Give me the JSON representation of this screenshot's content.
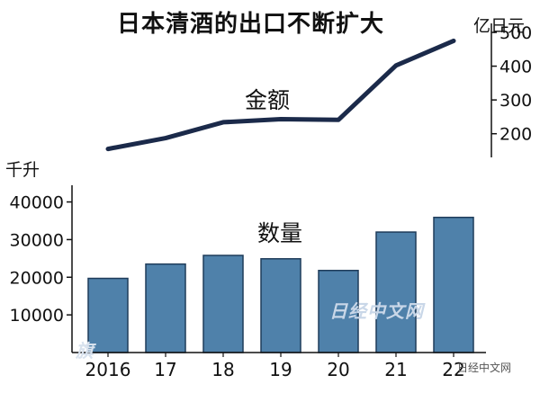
{
  "chart_data": [
    {
      "type": "line",
      "title": "日本清酒的出口不断扩大",
      "unit_label": "亿日元",
      "series_label": "金额",
      "x": [
        "2016",
        "17",
        "18",
        "19",
        "20",
        "21",
        "22"
      ],
      "values": [
        155,
        187,
        234,
        243,
        241,
        402,
        475
      ],
      "ylim": [
        130,
        500
      ],
      "yticks": [
        200,
        300,
        400,
        500
      ],
      "axis_side": "right",
      "color": "#1b2a4a"
    },
    {
      "type": "bar",
      "unit_label": "千升",
      "series_label": "数量",
      "categories": [
        "2016",
        "17",
        "18",
        "19",
        "20",
        "21",
        "22"
      ],
      "values": [
        19700,
        23500,
        25800,
        24900,
        21800,
        32000,
        35900
      ],
      "ylim": [
        0,
        43000
      ],
      "yticks": [
        10000,
        20000,
        30000,
        40000
      ],
      "color": "#4f81aa",
      "edge_color": "#1f3c5a"
    }
  ],
  "watermarks": {
    "center": "日经中文网",
    "bottom_right": "日经中文网",
    "bottom_left": "旗"
  }
}
